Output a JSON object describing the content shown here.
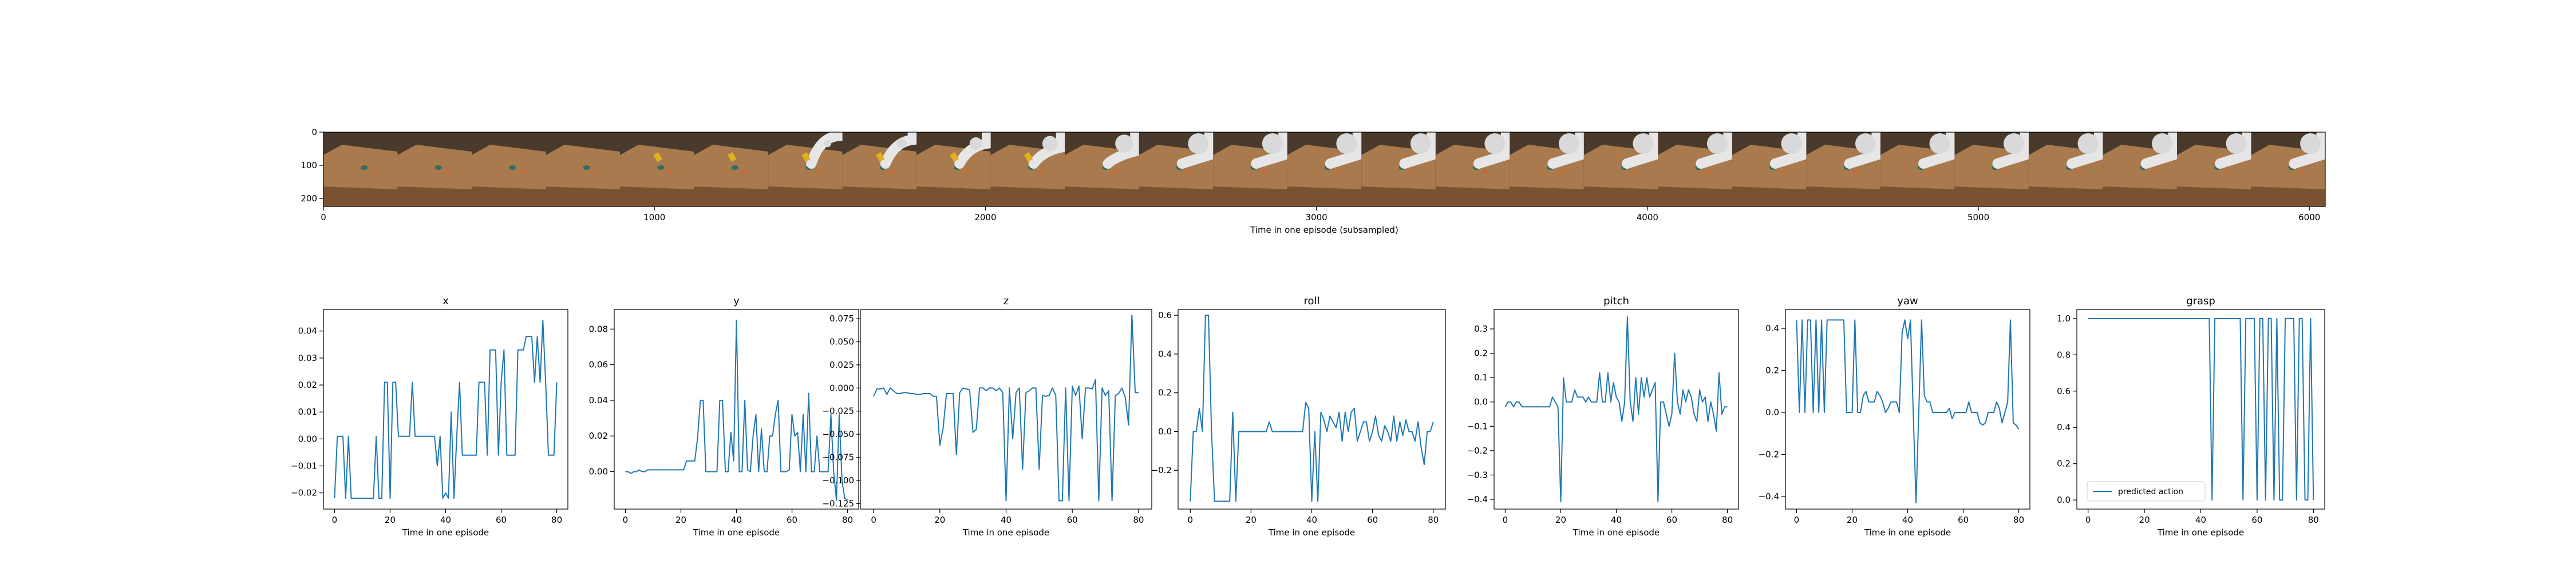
{
  "filmstrip": {
    "xlabel": "Time in one episode (subsampled)",
    "xticks": [
      0,
      1000,
      2000,
      3000,
      4000,
      5000,
      6000
    ],
    "yticks": [
      0,
      100,
      200
    ],
    "xlim": [
      0,
      6048
    ],
    "ylim": [
      0,
      224
    ],
    "frame_count": 27
  },
  "chart_data": [
    {
      "type": "line",
      "title": "x",
      "xlabel": "Time in one episode",
      "ylabel": "",
      "xlim": [
        -4,
        84
      ],
      "ylim": [
        -0.026,
        0.048
      ],
      "xticks": [
        0,
        20,
        40,
        60,
        80
      ],
      "yticks": [
        -0.02,
        -0.01,
        0.0,
        0.01,
        0.02,
        0.03,
        0.04
      ],
      "ytick_labels": [
        "−0.02",
        "−0.01",
        "0.00",
        "0.01",
        "0.02",
        "0.03",
        "0.04"
      ],
      "x": [
        0,
        1,
        2,
        3,
        4,
        5,
        6,
        7,
        8,
        9,
        10,
        11,
        12,
        13,
        14,
        15,
        16,
        17,
        18,
        19,
        20,
        21,
        22,
        23,
        24,
        25,
        26,
        27,
        28,
        29,
        30,
        31,
        32,
        33,
        34,
        35,
        36,
        37,
        38,
        39,
        40,
        41,
        42,
        43,
        44,
        45,
        46,
        47,
        48,
        49,
        50,
        51,
        52,
        53,
        54,
        55,
        56,
        57,
        58,
        59,
        60,
        61,
        62,
        63,
        64,
        65,
        66,
        67,
        68,
        69,
        70,
        71,
        72,
        73,
        74,
        75,
        76,
        77,
        78,
        79,
        80
      ],
      "values": [
        -0.022,
        0.001,
        0.001,
        0.001,
        -0.022,
        0.001,
        -0.022,
        -0.022,
        -0.022,
        -0.022,
        -0.022,
        -0.022,
        -0.022,
        -0.022,
        -0.022,
        0.001,
        -0.022,
        -0.022,
        0.021,
        0.021,
        -0.022,
        0.021,
        0.021,
        0.001,
        0.001,
        0.001,
        0.001,
        0.001,
        0.021,
        0.001,
        0.001,
        0.001,
        0.001,
        0.001,
        0.001,
        0.001,
        0.001,
        -0.01,
        0.001,
        -0.022,
        -0.02,
        -0.022,
        0.01,
        -0.022,
        0.001,
        0.021,
        -0.006,
        -0.006,
        -0.006,
        -0.006,
        -0.006,
        -0.006,
        0.021,
        0.021,
        0.021,
        -0.006,
        0.033,
        0.033,
        0.033,
        -0.006,
        0.021,
        0.033,
        -0.006,
        -0.006,
        -0.006,
        -0.006,
        0.033,
        0.033,
        0.033,
        0.038,
        0.038,
        0.038,
        0.021,
        0.038,
        0.021,
        0.044,
        0.021,
        -0.006,
        -0.006,
        -0.006,
        0.021
      ]
    },
    {
      "type": "line",
      "title": "y",
      "xlabel": "Time in one episode",
      "ylabel": "",
      "xlim": [
        -4,
        84
      ],
      "ylim": [
        -0.021,
        0.091
      ],
      "xticks": [
        0,
        20,
        40,
        60,
        80
      ],
      "yticks": [
        0.0,
        0.02,
        0.04,
        0.06,
        0.08
      ],
      "ytick_labels": [
        "0.00",
        "0.02",
        "0.04",
        "0.06",
        "0.08"
      ],
      "x": [
        0,
        1,
        2,
        3,
        4,
        5,
        6,
        7,
        8,
        9,
        10,
        11,
        12,
        13,
        14,
        15,
        16,
        17,
        18,
        19,
        20,
        21,
        22,
        23,
        24,
        25,
        26,
        27,
        28,
        29,
        30,
        31,
        32,
        33,
        34,
        35,
        36,
        37,
        38,
        39,
        40,
        41,
        42,
        43,
        44,
        45,
        46,
        47,
        48,
        49,
        50,
        51,
        52,
        53,
        54,
        55,
        56,
        57,
        58,
        59,
        60,
        61,
        62,
        63,
        64,
        65,
        66,
        67,
        68,
        69,
        70,
        71,
        72,
        73,
        74,
        75,
        76,
        77,
        78,
        79,
        80
      ],
      "values": [
        0.0,
        0.0,
        -0.001,
        0.0,
        0.0,
        0.001,
        0.0,
        0.0,
        0.001,
        0.001,
        0.001,
        0.001,
        0.001,
        0.001,
        0.001,
        0.001,
        0.001,
        0.001,
        0.001,
        0.001,
        0.001,
        0.001,
        0.006,
        0.006,
        0.006,
        0.006,
        0.019,
        0.04,
        0.04,
        0.0,
        0.0,
        0.0,
        0.0,
        0.0,
        0.04,
        0.04,
        0.0,
        0.0,
        0.022,
        0.006,
        0.085,
        0.0,
        0.0,
        0.04,
        0.001,
        0.0,
        0.02,
        0.032,
        0.0,
        0.024,
        0.0,
        0.0,
        0.02,
        0.02,
        0.032,
        0.04,
        0.0,
        0.0,
        0.0,
        0.001,
        0.032,
        0.02,
        0.022,
        0.0,
        0.032,
        0.0,
        0.044,
        0.0,
        0.0,
        0.02,
        0.0,
        0.0,
        0.0,
        0.0,
        0.032,
        0.0,
        -0.016,
        0.032,
        -0.005,
        -0.015,
        -0.016
      ]
    },
    {
      "type": "line",
      "title": "z",
      "xlabel": "Time in one episode",
      "ylabel": "",
      "xlim": [
        -4,
        84
      ],
      "ylim": [
        -0.131,
        0.085
      ],
      "xticks": [
        0,
        20,
        40,
        60,
        80
      ],
      "yticks": [
        -0.125,
        -0.1,
        -0.075,
        -0.05,
        -0.025,
        0.0,
        0.025,
        0.05,
        0.075
      ],
      "ytick_labels": [
        "−0.125",
        "−0.100",
        "−0.075",
        "−0.050",
        "−0.025",
        "0.000",
        "0.025",
        "0.050",
        "0.075"
      ],
      "x": [
        0,
        1,
        2,
        3,
        4,
        5,
        6,
        7,
        8,
        9,
        10,
        11,
        12,
        13,
        14,
        15,
        16,
        17,
        18,
        19,
        20,
        21,
        22,
        23,
        24,
        25,
        26,
        27,
        28,
        29,
        30,
        31,
        32,
        33,
        34,
        35,
        36,
        37,
        38,
        39,
        40,
        41,
        42,
        43,
        44,
        45,
        46,
        47,
        48,
        49,
        50,
        51,
        52,
        53,
        54,
        55,
        56,
        57,
        58,
        59,
        60,
        61,
        62,
        63,
        64,
        65,
        66,
        67,
        68,
        69,
        70,
        71,
        72,
        73,
        74,
        75,
        76,
        77,
        78,
        79,
        80
      ],
      "values": [
        -0.009,
        -0.001,
        -0.001,
        0.0,
        -0.007,
        0.0,
        -0.003,
        -0.006,
        -0.006,
        -0.005,
        -0.005,
        -0.006,
        -0.006,
        -0.007,
        -0.007,
        -0.006,
        -0.006,
        -0.006,
        -0.009,
        -0.009,
        -0.062,
        -0.043,
        -0.006,
        -0.006,
        -0.006,
        -0.072,
        -0.005,
        0.0,
        -0.001,
        -0.002,
        -0.048,
        -0.045,
        0.0,
        0.0,
        -0.003,
        0.0,
        0.0,
        -0.003,
        0.0,
        -0.005,
        -0.122,
        0.0,
        -0.055,
        -0.005,
        0.0,
        -0.088,
        -0.005,
        -0.003,
        0.0,
        0.0,
        -0.088,
        -0.008,
        -0.009,
        -0.008,
        0.0,
        -0.008,
        -0.122,
        -0.122,
        0.0,
        -0.122,
        0.002,
        -0.008,
        0.002,
        -0.055,
        0.0,
        0.0,
        -0.001,
        0.009,
        -0.122,
        0.0,
        -0.008,
        -0.003,
        -0.122,
        -0.008,
        -0.006,
        0.0,
        -0.01,
        -0.04,
        0.079,
        -0.005,
        -0.005
      ]
    },
    {
      "type": "line",
      "title": "roll",
      "xlabel": "Time in one episode",
      "ylabel": "",
      "xlim": [
        -4,
        84
      ],
      "ylim": [
        -0.4,
        0.63
      ],
      "xticks": [
        0,
        20,
        40,
        60,
        80
      ],
      "yticks": [
        -0.2,
        0.0,
        0.2,
        0.4,
        0.6
      ],
      "ytick_labels": [
        "−0.2",
        "0.0",
        "0.2",
        "0.4",
        "0.6"
      ],
      "x": [
        0,
        1,
        2,
        3,
        4,
        5,
        6,
        7,
        8,
        9,
        10,
        11,
        12,
        13,
        14,
        15,
        16,
        17,
        18,
        19,
        20,
        21,
        22,
        23,
        24,
        25,
        26,
        27,
        28,
        29,
        30,
        31,
        32,
        33,
        34,
        35,
        36,
        37,
        38,
        39,
        40,
        41,
        42,
        43,
        44,
        45,
        46,
        47,
        48,
        49,
        50,
        51,
        52,
        53,
        54,
        55,
        56,
        57,
        58,
        59,
        60,
        61,
        62,
        63,
        64,
        65,
        66,
        67,
        68,
        69,
        70,
        71,
        72,
        73,
        74,
        75,
        76,
        77,
        78,
        79,
        80
      ],
      "values": [
        -0.36,
        0.0,
        0.0,
        0.12,
        0.0,
        0.6,
        0.6,
        0.0,
        -0.36,
        -0.36,
        -0.36,
        -0.36,
        -0.36,
        -0.36,
        0.1,
        -0.36,
        0.0,
        0.0,
        0.0,
        0.0,
        0.0,
        0.0,
        0.0,
        0.0,
        0.0,
        0.0,
        0.05,
        0.0,
        0.0,
        0.0,
        0.0,
        0.0,
        0.0,
        0.0,
        0.0,
        0.0,
        0.0,
        0.0,
        0.15,
        0.12,
        -0.36,
        0.0,
        -0.36,
        0.1,
        0.06,
        0.0,
        0.08,
        0.05,
        0.02,
        0.1,
        -0.05,
        0.1,
        0.0,
        0.1,
        0.12,
        -0.05,
        0.0,
        0.05,
        0.05,
        -0.05,
        0.0,
        0.08,
        -0.02,
        -0.05,
        0.03,
        0.0,
        -0.05,
        0.08,
        -0.05,
        0.05,
        -0.02,
        0.06,
        0.0,
        0.0,
        -0.05,
        0.05,
        -0.08,
        -0.17,
        0.0,
        0.0,
        0.05
      ]
    },
    {
      "type": "line",
      "title": "pitch",
      "xlabel": "Time in one episode",
      "ylabel": "",
      "xlim": [
        -4,
        84
      ],
      "ylim": [
        -0.44,
        0.38
      ],
      "xticks": [
        0,
        20,
        40,
        60,
        80
      ],
      "yticks": [
        -0.4,
        -0.3,
        -0.2,
        -0.1,
        0.0,
        0.1,
        0.2,
        0.3
      ],
      "ytick_labels": [
        "−0.4",
        "−0.3",
        "−0.2",
        "−0.1",
        "0.0",
        "0.1",
        "0.2",
        "0.3"
      ],
      "x": [
        0,
        1,
        2,
        3,
        4,
        5,
        6,
        7,
        8,
        9,
        10,
        11,
        12,
        13,
        14,
        15,
        16,
        17,
        18,
        19,
        20,
        21,
        22,
        23,
        24,
        25,
        26,
        27,
        28,
        29,
        30,
        31,
        32,
        33,
        34,
        35,
        36,
        37,
        38,
        39,
        40,
        41,
        42,
        43,
        44,
        45,
        46,
        47,
        48,
        49,
        50,
        51,
        52,
        53,
        54,
        55,
        56,
        57,
        58,
        59,
        60,
        61,
        62,
        63,
        64,
        65,
        66,
        67,
        68,
        69,
        70,
        71,
        72,
        73,
        74,
        75,
        76,
        77,
        78,
        79,
        80
      ],
      "values": [
        -0.02,
        0.0,
        0.0,
        -0.02,
        0.0,
        0.0,
        -0.02,
        -0.02,
        -0.02,
        -0.02,
        -0.02,
        -0.02,
        -0.02,
        -0.02,
        -0.02,
        -0.02,
        -0.02,
        0.02,
        0.0,
        -0.02,
        -0.41,
        0.1,
        0.0,
        0.0,
        0.0,
        0.05,
        0.02,
        0.02,
        0.02,
        0.0,
        0.02,
        0.0,
        0.0,
        0.0,
        0.12,
        0.0,
        0.0,
        0.12,
        0.0,
        0.08,
        0.02,
        0.0,
        -0.08,
        0.0,
        0.35,
        0.0,
        -0.08,
        0.1,
        -0.05,
        0.1,
        0.02,
        0.1,
        0.02,
        0.05,
        0.08,
        -0.41,
        0.0,
        0.0,
        -0.05,
        -0.1,
        -0.05,
        0.2,
        0.0,
        -0.05,
        0.05,
        0.0,
        0.05,
        0.02,
        -0.05,
        -0.08,
        0.05,
        0.0,
        0.02,
        -0.08,
        0.0,
        -0.05,
        -0.12,
        0.12,
        -0.05,
        -0.02,
        -0.02
      ]
    },
    {
      "type": "line",
      "title": "yaw",
      "xlabel": "Time in one episode",
      "ylabel": "",
      "xlim": [
        -4,
        84
      ],
      "ylim": [
        -0.46,
        0.49
      ],
      "xticks": [
        0,
        20,
        40,
        60,
        80
      ],
      "yticks": [
        -0.4,
        -0.2,
        0.0,
        0.2,
        0.4
      ],
      "ytick_labels": [
        "−0.4",
        "−0.2",
        "0.0",
        "0.2",
        "0.4"
      ],
      "x": [
        0,
        1,
        2,
        3,
        4,
        5,
        6,
        7,
        8,
        9,
        10,
        11,
        12,
        13,
        14,
        15,
        16,
        17,
        18,
        19,
        20,
        21,
        22,
        23,
        24,
        25,
        26,
        27,
        28,
        29,
        30,
        31,
        32,
        33,
        34,
        35,
        36,
        37,
        38,
        39,
        40,
        41,
        42,
        43,
        44,
        45,
        46,
        47,
        48,
        49,
        50,
        51,
        52,
        53,
        54,
        55,
        56,
        57,
        58,
        59,
        60,
        61,
        62,
        63,
        64,
        65,
        66,
        67,
        68,
        69,
        70,
        71,
        72,
        73,
        74,
        75,
        76,
        77,
        78,
        79,
        80
      ],
      "values": [
        0.44,
        0.0,
        0.44,
        0.0,
        0.44,
        0.44,
        0.0,
        0.44,
        0.0,
        0.44,
        0.0,
        0.44,
        0.44,
        0.44,
        0.44,
        0.44,
        0.44,
        0.44,
        0.0,
        0.0,
        0.0,
        0.44,
        0.0,
        0.0,
        0.08,
        0.1,
        0.05,
        0.05,
        0.05,
        0.1,
        0.08,
        0.05,
        0.0,
        0.02,
        0.05,
        0.05,
        0.05,
        0.0,
        0.38,
        0.44,
        0.35,
        0.44,
        0.0,
        -0.43,
        0.0,
        0.44,
        0.08,
        0.05,
        0.05,
        0.0,
        0.0,
        0.0,
        0.0,
        0.0,
        0.0,
        0.02,
        -0.03,
        0.0,
        0.0,
        0.0,
        0.0,
        0.0,
        0.05,
        0.0,
        0.0,
        0.0,
        -0.05,
        -0.06,
        -0.05,
        0.0,
        0.0,
        0.0,
        0.05,
        0.02,
        -0.05,
        0.0,
        0.05,
        0.44,
        -0.05,
        -0.06,
        -0.08
      ]
    },
    {
      "type": "line",
      "title": "grasp",
      "xlabel": "Time in one episode",
      "ylabel": "",
      "xlim": [
        -4,
        84
      ],
      "ylim": [
        -0.05,
        1.05
      ],
      "xticks": [
        0,
        20,
        40,
        60,
        80
      ],
      "yticks": [
        0.0,
        0.2,
        0.4,
        0.6,
        0.8,
        1.0
      ],
      "ytick_labels": [
        "0.0",
        "0.2",
        "0.4",
        "0.6",
        "0.8",
        "1.0"
      ],
      "x": [
        0,
        1,
        2,
        3,
        4,
        5,
        6,
        7,
        8,
        9,
        10,
        11,
        12,
        13,
        14,
        15,
        16,
        17,
        18,
        19,
        20,
        21,
        22,
        23,
        24,
        25,
        26,
        27,
        28,
        29,
        30,
        31,
        32,
        33,
        34,
        35,
        36,
        37,
        38,
        39,
        40,
        41,
        42,
        43,
        44,
        45,
        46,
        47,
        48,
        49,
        50,
        51,
        52,
        53,
        54,
        55,
        56,
        57,
        58,
        59,
        60,
        61,
        62,
        63,
        64,
        65,
        66,
        67,
        68,
        69,
        70,
        71,
        72,
        73,
        74,
        75,
        76,
        77,
        78,
        79,
        80
      ],
      "values": [
        1,
        1,
        1,
        1,
        1,
        1,
        1,
        1,
        1,
        1,
        1,
        1,
        1,
        1,
        1,
        1,
        1,
        1,
        1,
        1,
        1,
        1,
        1,
        1,
        1,
        1,
        1,
        1,
        1,
        1,
        1,
        1,
        1,
        1,
        1,
        1,
        1,
        1,
        1,
        1,
        1,
        1,
        1,
        1,
        0,
        1,
        1,
        1,
        1,
        1,
        1,
        1,
        1,
        1,
        1,
        0,
        1,
        1,
        1,
        1,
        0,
        1,
        1,
        0,
        1,
        1,
        0,
        1,
        0,
        0,
        1,
        1,
        1,
        1,
        0,
        1,
        1,
        0,
        0,
        1,
        0
      ],
      "series": [
        {
          "name": "predicted action"
        }
      ],
      "legend": "lower-left"
    }
  ]
}
